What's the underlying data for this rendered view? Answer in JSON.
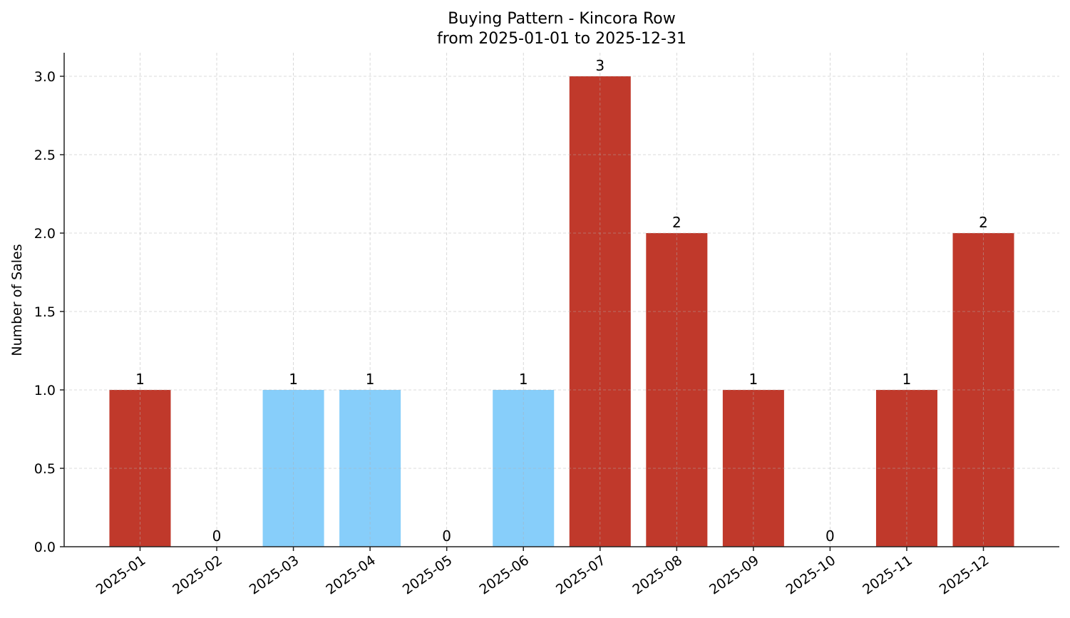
{
  "chart_data": {
    "type": "bar",
    "title": "Buying Pattern - Kincora Row",
    "subtitle": "from 2025-01-01 to 2025-12-31",
    "xlabel": "",
    "ylabel": "Number of Sales",
    "categories": [
      "2025-01",
      "2025-02",
      "2025-03",
      "2025-04",
      "2025-05",
      "2025-06",
      "2025-07",
      "2025-08",
      "2025-09",
      "2025-10",
      "2025-11",
      "2025-12"
    ],
    "values": [
      1,
      0,
      1,
      1,
      0,
      1,
      3,
      2,
      1,
      0,
      1,
      2
    ],
    "bar_colors": [
      "#c0392b",
      "#c0392b",
      "#87cefa",
      "#87cefa",
      "#c0392b",
      "#87cefa",
      "#c0392b",
      "#c0392b",
      "#c0392b",
      "#c0392b",
      "#c0392b",
      "#c0392b"
    ],
    "data_labels": [
      "1",
      "0",
      "1",
      "1",
      "0",
      "1",
      "3",
      "2",
      "1",
      "0",
      "1",
      "2"
    ],
    "yticks": [
      "0.0",
      "0.5",
      "1.0",
      "1.5",
      "2.0",
      "2.5",
      "3.0"
    ],
    "ylim": [
      0,
      3.15
    ],
    "grid": true,
    "legend": "none"
  }
}
